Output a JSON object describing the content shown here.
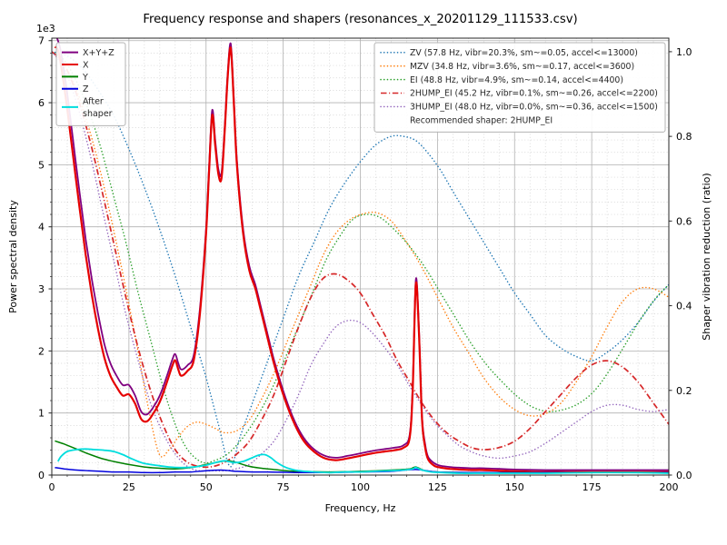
{
  "chart_data": {
    "type": "line",
    "title": "Frequency response and shapers (resonances_x_20201129_111533.csv)",
    "axes": {
      "x": {
        "label": "Frequency, Hz",
        "min": 0,
        "max": 200,
        "major_ticks": [
          0,
          25,
          50,
          75,
          100,
          125,
          150,
          175,
          200
        ],
        "minor_step": 5
      },
      "y_left": {
        "label": "Power spectral density",
        "offset_label": "1e3",
        "min": 0,
        "max": 7.04,
        "major_ticks": [
          0,
          1,
          2,
          3,
          4,
          5,
          6,
          7
        ],
        "minor_step": 0.2
      },
      "y_right": {
        "label": "Shaper vibration reduction (ratio)",
        "min": 0,
        "max": 1.032,
        "major_ticks": [
          0.0,
          0.2,
          0.4,
          0.6,
          0.8,
          1.0
        ]
      }
    },
    "grid": {
      "major_color": "#b0b0b0",
      "minor_color": "#cdcdcd",
      "on": true
    },
    "legend_left": {
      "entries": [
        {
          "label": "X+Y+Z",
          "color": "#800080",
          "dash": "solid"
        },
        {
          "label": "X",
          "color": "#e50000",
          "dash": "solid"
        },
        {
          "label": "Y",
          "color": "#008000",
          "dash": "solid"
        },
        {
          "label": "Z",
          "color": "#0000dd",
          "dash": "solid"
        },
        {
          "label": "After\nshaper",
          "color": "#00dddd",
          "dash": "solid"
        }
      ]
    },
    "legend_right": {
      "entries": [
        {
          "label": "ZV (57.8 Hz, vibr=20.3%, sm~=0.05, accel<=13000)",
          "color": "#1f77b4",
          "dash": "dotted"
        },
        {
          "label": "MZV (34.8 Hz, vibr=3.6%, sm~=0.17, accel<=3600)",
          "color": "#ff7f0e",
          "dash": "dotted"
        },
        {
          "label": "EI (48.8 Hz, vibr=4.9%, sm~=0.14, accel<=4400)",
          "color": "#2ca02c",
          "dash": "dotted"
        },
        {
          "label": "2HUMP_EI (45.2 Hz, vibr=0.1%, sm~=0.26, accel<=2200)",
          "color": "#d62728",
          "dash": "dashdot"
        },
        {
          "label": "3HUMP_EI (48.0 Hz, vibr=0.0%, sm~=0.36, accel<=1500)",
          "color": "#9467bd",
          "dash": "dotted"
        }
      ],
      "footer": "Recommended shaper: 2HUMP_EI"
    },
    "series": [
      {
        "name": "ZV",
        "axis": "ratio",
        "color": "#1f77b4",
        "dash": "dotted",
        "width": 1.5,
        "x": [
          0,
          5,
          10,
          15,
          20,
          25,
          30,
          35,
          40,
          45,
          50,
          54,
          57.8,
          61,
          65,
          70,
          75,
          80,
          85,
          90,
          95,
          100,
          105,
          110,
          114,
          118,
          122,
          126,
          130,
          135,
          140,
          145,
          150,
          155,
          160,
          165,
          170,
          175,
          180,
          185,
          190,
          195,
          200
        ],
        "y": [
          1.0,
          0.99,
          0.96,
          0.91,
          0.85,
          0.77,
          0.68,
          0.58,
          0.47,
          0.35,
          0.23,
          0.12,
          0.02,
          0.09,
          0.17,
          0.27,
          0.37,
          0.47,
          0.55,
          0.63,
          0.69,
          0.74,
          0.78,
          0.8,
          0.8,
          0.79,
          0.76,
          0.72,
          0.67,
          0.61,
          0.55,
          0.49,
          0.43,
          0.38,
          0.33,
          0.3,
          0.28,
          0.27,
          0.29,
          0.32,
          0.36,
          0.41,
          0.45
        ]
      },
      {
        "name": "MZV",
        "axis": "ratio",
        "color": "#ff7f0e",
        "dash": "dotted",
        "width": 1.5,
        "x": [
          0,
          4,
          8,
          12,
          16,
          20,
          24,
          28,
          31,
          34.8,
          38,
          41,
          44,
          47,
          50,
          53,
          56,
          60,
          64,
          68,
          72,
          76,
          80,
          84,
          88,
          92,
          96,
          100,
          105,
          110,
          115,
          120,
          125,
          130,
          135,
          140,
          145,
          150,
          155,
          160,
          165,
          170,
          175,
          180,
          185,
          190,
          195,
          200
        ],
        "y": [
          1.0,
          0.97,
          0.91,
          0.82,
          0.71,
          0.58,
          0.44,
          0.29,
          0.17,
          0.05,
          0.06,
          0.09,
          0.115,
          0.125,
          0.12,
          0.11,
          0.1,
          0.105,
          0.13,
          0.18,
          0.24,
          0.31,
          0.38,
          0.45,
          0.52,
          0.57,
          0.6,
          0.615,
          0.62,
          0.6,
          0.55,
          0.49,
          0.42,
          0.35,
          0.29,
          0.23,
          0.185,
          0.155,
          0.14,
          0.145,
          0.17,
          0.22,
          0.28,
          0.35,
          0.41,
          0.44,
          0.44,
          0.42
        ]
      },
      {
        "name": "EI",
        "axis": "ratio",
        "color": "#2ca02c",
        "dash": "dotted",
        "width": 1.5,
        "x": [
          0,
          4,
          8,
          12,
          16,
          20,
          24,
          28,
          32,
          36,
          40,
          44,
          48.8,
          53,
          57,
          61,
          65,
          69,
          73,
          77,
          81,
          85,
          89,
          93,
          97,
          101,
          106,
          111,
          116,
          121,
          126,
          131,
          136,
          141,
          146,
          151,
          156,
          161,
          166,
          171,
          176,
          181,
          186,
          191,
          196,
          200
        ],
        "y": [
          1.0,
          0.98,
          0.93,
          0.86,
          0.77,
          0.66,
          0.55,
          0.43,
          0.32,
          0.21,
          0.12,
          0.06,
          0.03,
          0.035,
          0.05,
          0.08,
          0.12,
          0.17,
          0.23,
          0.3,
          0.37,
          0.44,
          0.51,
          0.56,
          0.6,
          0.615,
          0.61,
          0.58,
          0.54,
          0.49,
          0.43,
          0.37,
          0.31,
          0.26,
          0.22,
          0.185,
          0.16,
          0.15,
          0.155,
          0.17,
          0.2,
          0.25,
          0.31,
          0.37,
          0.42,
          0.45
        ]
      },
      {
        "name": "2HUMP_EI",
        "axis": "ratio",
        "color": "#d62728",
        "dash": "dashdot",
        "width": 1.7,
        "x": [
          0,
          4,
          8,
          12,
          16,
          20,
          24,
          28,
          32,
          36,
          40,
          44,
          48,
          52,
          56,
          60,
          64,
          68,
          72,
          76,
          80,
          84,
          88,
          92,
          96,
          100,
          104,
          108,
          112,
          116,
          120,
          124,
          128,
          132,
          136,
          140,
          145,
          150,
          155,
          160,
          165,
          170,
          175,
          180,
          185,
          190,
          195,
          200
        ],
        "y": [
          1.0,
          0.97,
          0.9,
          0.8,
          0.68,
          0.55,
          0.42,
          0.3,
          0.2,
          0.12,
          0.06,
          0.03,
          0.02,
          0.02,
          0.03,
          0.05,
          0.08,
          0.13,
          0.19,
          0.27,
          0.35,
          0.42,
          0.465,
          0.475,
          0.46,
          0.43,
          0.38,
          0.33,
          0.27,
          0.22,
          0.17,
          0.13,
          0.1,
          0.08,
          0.065,
          0.06,
          0.065,
          0.08,
          0.11,
          0.15,
          0.19,
          0.23,
          0.26,
          0.27,
          0.255,
          0.22,
          0.17,
          0.12
        ]
      },
      {
        "name": "3HUMP_EI",
        "axis": "ratio",
        "color": "#9467bd",
        "dash": "dotted",
        "width": 1.5,
        "x": [
          0,
          4,
          8,
          12,
          16,
          20,
          24,
          28,
          32,
          36,
          40,
          44,
          48,
          52,
          56,
          60,
          64,
          68,
          72,
          76,
          80,
          84,
          88,
          92,
          96,
          100,
          104,
          108,
          112,
          116,
          120,
          124,
          128,
          132,
          136,
          140,
          145,
          150,
          155,
          160,
          165,
          170,
          175,
          180,
          185,
          190,
          195,
          200
        ],
        "y": [
          1.0,
          0.96,
          0.88,
          0.77,
          0.64,
          0.51,
          0.38,
          0.27,
          0.17,
          0.1,
          0.05,
          0.02,
          0.01,
          0.01,
          0.01,
          0.015,
          0.025,
          0.05,
          0.08,
          0.13,
          0.19,
          0.26,
          0.31,
          0.35,
          0.365,
          0.36,
          0.335,
          0.3,
          0.26,
          0.21,
          0.165,
          0.125,
          0.095,
          0.07,
          0.055,
          0.045,
          0.04,
          0.045,
          0.055,
          0.075,
          0.1,
          0.125,
          0.15,
          0.165,
          0.165,
          0.155,
          0.15,
          0.155
        ]
      },
      {
        "name": "X+Y+Z",
        "axis": "psd",
        "color": "#800080",
        "dash": "solid",
        "width": 1.8,
        "x": [
          1,
          2,
          3,
          5,
          7,
          9,
          11,
          13,
          15,
          17,
          19,
          21,
          23,
          25,
          27,
          29,
          31,
          33,
          35,
          37,
          39,
          40,
          41,
          42,
          44,
          46,
          48,
          50,
          51,
          52,
          53,
          54,
          55,
          56,
          57,
          58,
          59,
          60,
          62,
          64,
          66,
          68,
          70,
          72,
          75,
          78,
          81,
          84,
          88,
          92,
          96,
          100,
          104,
          108,
          111,
          114,
          116,
          117,
          118,
          119,
          120,
          121,
          122,
          124,
          126,
          129,
          132,
          136,
          140,
          150,
          160,
          170,
          180,
          190,
          200
        ],
        "y": [
          7.1,
          7.0,
          6.8,
          6.15,
          5.35,
          4.55,
          3.8,
          3.15,
          2.6,
          2.12,
          1.8,
          1.6,
          1.45,
          1.45,
          1.28,
          1.02,
          0.98,
          1.1,
          1.28,
          1.55,
          1.85,
          1.95,
          1.8,
          1.7,
          1.77,
          1.93,
          2.68,
          3.98,
          4.98,
          5.88,
          5.38,
          4.93,
          4.86,
          5.57,
          6.46,
          6.95,
          6.07,
          5.07,
          3.97,
          3.37,
          3.06,
          2.66,
          2.26,
          1.86,
          1.36,
          0.95,
          0.65,
          0.46,
          0.32,
          0.28,
          0.31,
          0.35,
          0.39,
          0.42,
          0.44,
          0.48,
          0.65,
          1.45,
          3.15,
          2.36,
          0.95,
          0.5,
          0.29,
          0.19,
          0.15,
          0.13,
          0.12,
          0.11,
          0.11,
          0.09,
          0.08,
          0.08,
          0.08,
          0.08,
          0.08
        ]
      },
      {
        "name": "X",
        "axis": "psd",
        "color": "#e50000",
        "dash": "solid",
        "width": 2.2,
        "x": [
          1,
          2,
          3,
          5,
          7,
          9,
          11,
          13,
          15,
          17,
          19,
          21,
          23,
          25,
          27,
          29,
          31,
          33,
          35,
          37,
          39,
          40,
          41,
          42,
          44,
          46,
          48,
          50,
          51,
          52,
          53,
          54,
          55,
          56,
          57,
          58,
          59,
          60,
          62,
          64,
          66,
          68,
          70,
          72,
          75,
          78,
          81,
          84,
          88,
          92,
          96,
          100,
          104,
          108,
          111,
          114,
          116,
          117,
          118,
          119,
          120,
          121,
          122,
          124,
          126,
          129,
          132,
          136,
          140,
          150,
          160,
          170,
          180,
          190,
          200
        ],
        "y": [
          6.9,
          6.85,
          6.6,
          5.9,
          5.1,
          4.3,
          3.55,
          2.9,
          2.35,
          1.9,
          1.6,
          1.42,
          1.28,
          1.3,
          1.15,
          0.9,
          0.87,
          1.0,
          1.18,
          1.45,
          1.75,
          1.85,
          1.7,
          1.6,
          1.68,
          1.85,
          2.6,
          3.9,
          4.9,
          5.8,
          5.3,
          4.85,
          4.78,
          5.5,
          6.4,
          6.88,
          6.0,
          5.0,
          3.9,
          3.3,
          3.0,
          2.6,
          2.2,
          1.8,
          1.3,
          0.9,
          0.6,
          0.42,
          0.28,
          0.24,
          0.27,
          0.31,
          0.35,
          0.38,
          0.4,
          0.44,
          0.6,
          1.4,
          3.08,
          2.3,
          0.9,
          0.45,
          0.25,
          0.15,
          0.12,
          0.1,
          0.09,
          0.08,
          0.08,
          0.06,
          0.05,
          0.05,
          0.05,
          0.05,
          0.05
        ]
      },
      {
        "name": "Y",
        "axis": "psd",
        "color": "#008000",
        "dash": "solid",
        "width": 1.5,
        "x": [
          1,
          4,
          8,
          12,
          16,
          20,
          25,
          30,
          35,
          40,
          45,
          50,
          54,
          57,
          60,
          64,
          68,
          72,
          76,
          80,
          90,
          100,
          110,
          116,
          118,
          121,
          125,
          135,
          150,
          175,
          200
        ],
        "y": [
          0.55,
          0.5,
          0.42,
          0.34,
          0.27,
          0.22,
          0.17,
          0.13,
          0.11,
          0.1,
          0.12,
          0.17,
          0.21,
          0.23,
          0.2,
          0.14,
          0.11,
          0.09,
          0.07,
          0.06,
          0.05,
          0.06,
          0.08,
          0.1,
          0.13,
          0.07,
          0.05,
          0.04,
          0.04,
          0.04,
          0.04
        ]
      },
      {
        "name": "Z",
        "axis": "psd",
        "color": "#0000dd",
        "dash": "solid",
        "width": 1.5,
        "x": [
          1,
          4,
          8,
          12,
          16,
          20,
          25,
          30,
          35,
          40,
          45,
          50,
          55,
          60,
          65,
          70,
          80,
          90,
          100,
          110,
          118,
          125,
          140,
          160,
          180,
          200
        ],
        "y": [
          0.12,
          0.1,
          0.08,
          0.07,
          0.06,
          0.05,
          0.05,
          0.04,
          0.04,
          0.05,
          0.05,
          0.07,
          0.08,
          0.06,
          0.05,
          0.05,
          0.04,
          0.04,
          0.05,
          0.06,
          0.09,
          0.05,
          0.04,
          0.04,
          0.04,
          0.04
        ]
      },
      {
        "name": "After shaper",
        "axis": "psd",
        "color": "#00dddd",
        "dash": "solid",
        "width": 1.8,
        "x": [
          2,
          3,
          5,
          8,
          11,
          14,
          17,
          20,
          23,
          26,
          29,
          32,
          35,
          38,
          42,
          46,
          50,
          53,
          56,
          59,
          62,
          65,
          67,
          69,
          71,
          73,
          76,
          80,
          85,
          90,
          95,
          100,
          105,
          110,
          114,
          117,
          118,
          120,
          123,
          127,
          132,
          140,
          150,
          160,
          175,
          190,
          200
        ],
        "y": [
          0.22,
          0.3,
          0.38,
          0.41,
          0.42,
          0.41,
          0.4,
          0.38,
          0.33,
          0.26,
          0.2,
          0.17,
          0.15,
          0.13,
          0.12,
          0.13,
          0.16,
          0.2,
          0.23,
          0.2,
          0.22,
          0.28,
          0.32,
          0.33,
          0.28,
          0.2,
          0.12,
          0.07,
          0.05,
          0.04,
          0.05,
          0.05,
          0.06,
          0.07,
          0.08,
          0.1,
          0.12,
          0.08,
          0.05,
          0.04,
          0.03,
          0.03,
          0.03,
          0.03,
          0.04,
          0.04,
          0.03
        ]
      }
    ]
  }
}
